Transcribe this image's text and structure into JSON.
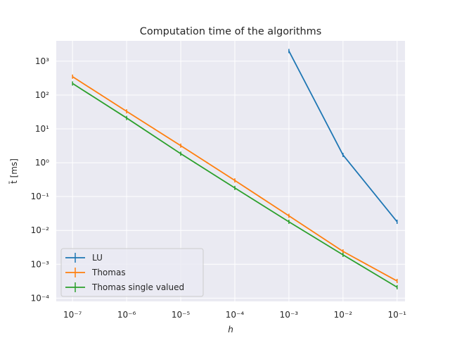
{
  "chart_data": {
    "type": "line",
    "title": "Computation time of the algorithms",
    "xlabel": "h",
    "ylabel": "t̄ [ms]",
    "xscale": "log",
    "yscale": "log",
    "xlim": [
      5e-08,
      0.14
    ],
    "ylim": [
      8e-05,
      4000
    ],
    "xticks": [
      {
        "value": 1e-07,
        "label": "10⁻⁷"
      },
      {
        "value": 1e-06,
        "label": "10⁻⁶"
      },
      {
        "value": 1e-05,
        "label": "10⁻⁵"
      },
      {
        "value": 0.0001,
        "label": "10⁻⁴"
      },
      {
        "value": 0.001,
        "label": "10⁻³"
      },
      {
        "value": 0.01,
        "label": "10⁻²"
      },
      {
        "value": 0.1,
        "label": "10⁻¹"
      }
    ],
    "yticks": [
      {
        "value": 0.0001,
        "label": "10⁻⁴"
      },
      {
        "value": 0.001,
        "label": "10⁻³"
      },
      {
        "value": 0.01,
        "label": "10⁻²"
      },
      {
        "value": 0.1,
        "label": "10⁻¹"
      },
      {
        "value": 1,
        "label": "10⁰"
      },
      {
        "value": 10,
        "label": "10¹"
      },
      {
        "value": 100,
        "label": "10²"
      },
      {
        "value": 1000,
        "label": "10³"
      }
    ],
    "grid": true,
    "legend_position": "lower-left",
    "series": [
      {
        "name": "LU",
        "color": "#1f77b4",
        "x": [
          0.001,
          0.01,
          0.1
        ],
        "y": [
          2000,
          1.7,
          0.018
        ]
      },
      {
        "name": "Thomas",
        "color": "#ff7f0e",
        "x": [
          1e-07,
          1e-06,
          1e-05,
          0.0001,
          0.001,
          0.01,
          0.1
        ],
        "y": [
          350,
          33,
          3.2,
          0.3,
          0.027,
          0.0024,
          0.00032
        ]
      },
      {
        "name": "Thomas single valued",
        "color": "#2ca02c",
        "x": [
          1e-07,
          1e-06,
          1e-05,
          0.0001,
          0.001,
          0.01,
          0.1
        ],
        "y": [
          220,
          21,
          1.85,
          0.18,
          0.018,
          0.0019,
          0.00021
        ]
      }
    ]
  }
}
